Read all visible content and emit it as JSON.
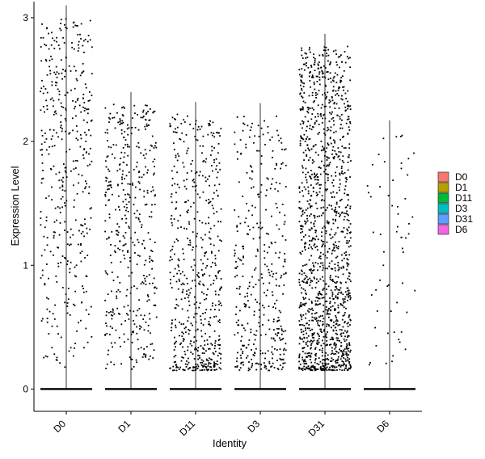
{
  "chart_data": {
    "type": "violin-jitter",
    "xlabel": "Identity",
    "ylabel": "Expression Level",
    "categories": [
      "D0",
      "D1",
      "D11",
      "D3",
      "D31",
      "D6"
    ],
    "ylim": [
      -0.18,
      3.13
    ],
    "yticks": [
      0,
      1,
      2,
      3
    ],
    "colors": [
      "#F8766D",
      "#B79F00",
      "#00BA38",
      "#00BFC4",
      "#619CFF",
      "#F564E3"
    ],
    "grid": false,
    "legend_position": "right",
    "series": [
      {
        "name": "D0",
        "max": 3.1,
        "n_expressing": 420,
        "high_skew": 0.75
      },
      {
        "name": "D1",
        "max": 2.4,
        "n_expressing": 430,
        "high_skew": 0.9
      },
      {
        "name": "D11",
        "max": 2.32,
        "n_expressing": 560,
        "high_skew": 1.7
      },
      {
        "name": "D3",
        "max": 2.31,
        "n_expressing": 380,
        "high_skew": 1.5
      },
      {
        "name": "D31",
        "max": 2.87,
        "n_expressing": 1400,
        "high_skew": 1.4
      },
      {
        "name": "D6",
        "max": 2.17,
        "n_expressing": 60,
        "high_skew": 1.0
      }
    ]
  }
}
